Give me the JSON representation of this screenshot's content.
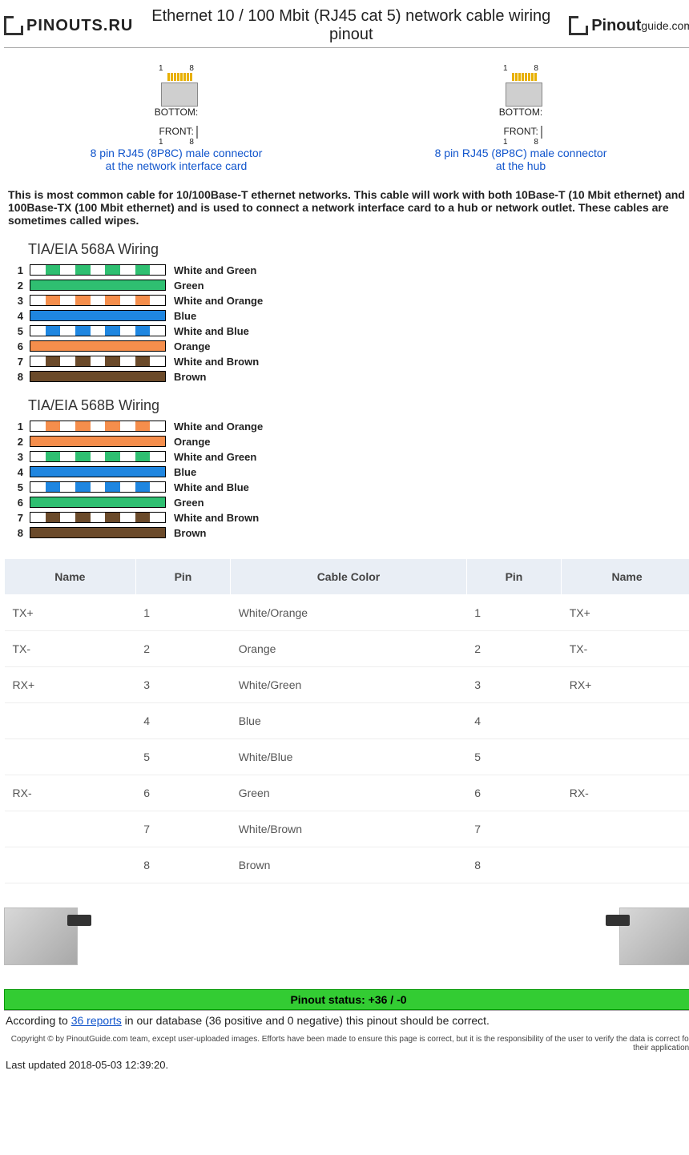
{
  "header": {
    "logo_left": "PINOUTS.RU",
    "title": "Ethernet 10 / 100 Mbit (RJ45 cat 5) network cable wiring pinout",
    "logo_right_a": "Pinout",
    "logo_right_b": "guide.com"
  },
  "connectors": {
    "left_label": "BOTTOM:",
    "left_label2": "FRONT:",
    "left_link1": "8 pin RJ45 (8P8C) male connector",
    "left_link2": "at the network interface card",
    "right_link1": "8 pin RJ45 (8P8C) male connector",
    "right_link2": "at the hub",
    "num1": "1",
    "num8": "8"
  },
  "intro": "This is most common cable for 10/100Base-T ethernet networks. This cable will work with both 10Base-T (10 Mbit ethernet) and 100Base-TX (100 Mbit ethernet) and is used to connect a network interface card to a hub or network outlet. These cables are sometimes called wipes.",
  "colors": {
    "green": "#2fbf71",
    "orange": "#f58e4c",
    "blue": "#1f86e0",
    "brown": "#6b4a2a",
    "white": "#ffffff"
  },
  "wiring_a": {
    "title": "TIA/EIA 568A Wiring",
    "rows": [
      {
        "n": "1",
        "label": "White and Green",
        "striped": true,
        "color": "green"
      },
      {
        "n": "2",
        "label": "Green",
        "striped": false,
        "color": "green"
      },
      {
        "n": "3",
        "label": "White and Orange",
        "striped": true,
        "color": "orange"
      },
      {
        "n": "4",
        "label": "Blue",
        "striped": false,
        "color": "blue"
      },
      {
        "n": "5",
        "label": "White and Blue",
        "striped": true,
        "color": "blue"
      },
      {
        "n": "6",
        "label": "Orange",
        "striped": false,
        "color": "orange"
      },
      {
        "n": "7",
        "label": "White and Brown",
        "striped": true,
        "color": "brown"
      },
      {
        "n": "8",
        "label": "Brown",
        "striped": false,
        "color": "brown"
      }
    ]
  },
  "wiring_b": {
    "title": "TIA/EIA 568B Wiring",
    "rows": [
      {
        "n": "1",
        "label": "White and Orange",
        "striped": true,
        "color": "orange"
      },
      {
        "n": "2",
        "label": "Orange",
        "striped": false,
        "color": "orange"
      },
      {
        "n": "3",
        "label": "White and Green",
        "striped": true,
        "color": "green"
      },
      {
        "n": "4",
        "label": "Blue",
        "striped": false,
        "color": "blue"
      },
      {
        "n": "5",
        "label": "White and Blue",
        "striped": true,
        "color": "blue"
      },
      {
        "n": "6",
        "label": "Green",
        "striped": false,
        "color": "green"
      },
      {
        "n": "7",
        "label": "White and Brown",
        "striped": true,
        "color": "brown"
      },
      {
        "n": "8",
        "label": "Brown",
        "striped": false,
        "color": "brown"
      }
    ]
  },
  "table": {
    "headers": [
      "Name",
      "Pin",
      "Cable Color",
      "Pin",
      "Name"
    ],
    "rows": [
      [
        "TX+",
        "1",
        "White/Orange",
        "1",
        "TX+"
      ],
      [
        "TX-",
        "2",
        "Orange",
        "2",
        "TX-"
      ],
      [
        "RX+",
        "3",
        "White/Green",
        "3",
        "RX+"
      ],
      [
        "",
        "4",
        "Blue",
        "4",
        ""
      ],
      [
        "",
        "5",
        "White/Blue",
        "5",
        ""
      ],
      [
        "RX-",
        "6",
        "Green",
        "6",
        "RX-"
      ],
      [
        "",
        "7",
        "White/Brown",
        "7",
        ""
      ],
      [
        "",
        "8",
        "Brown",
        "8",
        ""
      ]
    ]
  },
  "status": {
    "bar": "Pinout status: +36 / -0",
    "text_before": "According to ",
    "link": "36 reports",
    "text_after": " in our database (36 positive and 0 negative) this pinout should be correct."
  },
  "copyright": "Copyright © by PinoutGuide.com team, except user-uploaded images. Efforts have been made to ensure this page is correct, but it is the responsibility of the user to verify the data is correct for their application.",
  "updated": "Last updated 2018-05-03 12:39:20."
}
